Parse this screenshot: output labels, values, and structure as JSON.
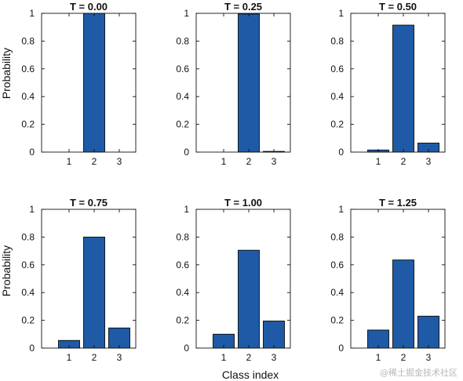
{
  "chart_data": {
    "type": "bar",
    "categories": [
      "1",
      "2",
      "3"
    ],
    "ylim": [
      0,
      1
    ],
    "yticks": [
      "0",
      "0.2",
      "0.4",
      "0.6",
      "0.8",
      "1"
    ],
    "xlabel": "Class index",
    "ylabel": "Probability",
    "bar_color": "#1f5aa6",
    "panels": [
      {
        "title": "T = 0.00",
        "values": [
          0.0,
          1.0,
          0.0
        ]
      },
      {
        "title": "T = 0.25",
        "values": [
          0.0,
          0.995,
          0.005
        ]
      },
      {
        "title": "T = 0.50",
        "values": [
          0.015,
          0.915,
          0.065
        ]
      },
      {
        "title": "T = 0.75",
        "values": [
          0.055,
          0.8,
          0.145
        ]
      },
      {
        "title": "T = 1.00",
        "values": [
          0.1,
          0.705,
          0.195
        ]
      },
      {
        "title": "T = 1.25",
        "values": [
          0.13,
          0.635,
          0.23
        ]
      }
    ]
  },
  "watermark": "@稀土掘金技术社区"
}
